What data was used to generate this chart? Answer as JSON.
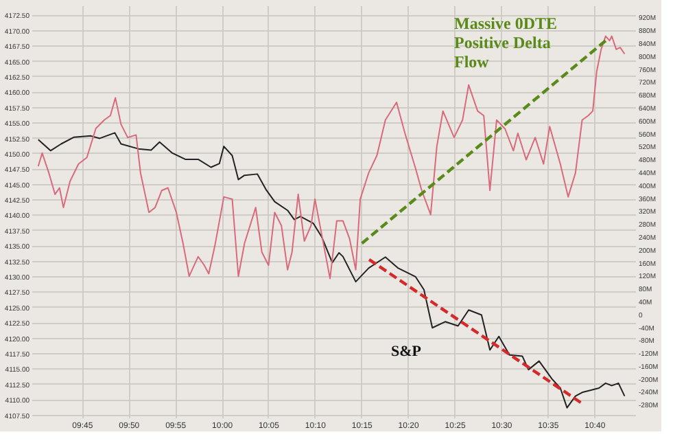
{
  "chart_data": {
    "type": "line",
    "x": [
      9.672,
      9.694,
      9.713,
      9.736,
      9.766,
      9.782,
      9.809,
      9.82,
      9.851,
      9.874,
      9.889,
      9.912,
      9.935,
      9.958,
      9.981,
      9.996,
      10.004,
      10.019,
      10.03,
      10.041,
      10.064,
      10.08,
      10.095,
      10.118,
      10.13,
      10.141,
      10.164,
      10.179,
      10.198,
      10.21,
      10.217,
      10.24,
      10.263,
      10.293,
      10.316,
      10.347,
      10.362,
      10.377,
      10.4,
      10.423,
      10.442,
      10.465,
      10.48,
      10.496,
      10.515,
      10.538,
      10.549,
      10.568,
      10.591,
      10.606,
      10.618,
      10.633,
      10.645,
      10.675,
      10.687,
      10.698,
      10.71,
      10.721
    ],
    "series": [
      {
        "color": "#222222",
        "values": [
          4152.2,
          4150.4,
          4151.5,
          4152.6,
          4152.8,
          4152.4,
          4153.3,
          4151.5,
          4150.7,
          4150.5,
          4151.8,
          4150.0,
          4149.0,
          4149.0,
          4147.7,
          4148.3,
          4151.1,
          4149.6,
          4145.7,
          4146.4,
          4146.6,
          4144.0,
          4142.1,
          4140.7,
          4139.2,
          4139.7,
          4138.6,
          4136.4,
          4132.2,
          4133.8,
          4133.2,
          4129.1,
          4131.3,
          4133.1,
          4131.3,
          4129.9,
          4127.8,
          4121.6,
          4122.6,
          4121.9,
          4124.5,
          4123.7,
          4118.0,
          4120.2,
          4117.2,
          4117.0,
          4114.8,
          4116.2,
          4113.3,
          4111.8,
          4108.6,
          4110.5,
          4111.1,
          4111.8,
          4112.6,
          4112.2,
          4112.6,
          4110.5
        ]
      },
      {
        "color": "#d96a7b",
        "axis": "y2",
        "x": [
          9.672,
          9.679,
          9.691,
          9.702,
          9.71,
          9.717,
          9.729,
          9.744,
          9.759,
          9.775,
          9.79,
          9.801,
          9.81,
          9.82,
          9.832,
          9.847,
          9.855,
          9.87,
          9.881,
          9.893,
          9.904,
          9.919,
          9.931,
          9.942,
          9.958,
          9.969,
          9.977,
          9.988,
          10.004,
          10.019,
          10.03,
          10.041,
          10.061,
          10.072,
          10.084,
          10.095,
          10.107,
          10.118,
          10.126,
          10.137,
          10.148,
          10.16,
          10.167,
          10.179,
          10.194,
          10.206,
          10.217,
          10.229,
          10.24,
          10.248,
          10.263,
          10.278,
          10.293,
          10.313,
          10.328,
          10.347,
          10.358,
          10.374,
          10.385,
          10.396,
          10.416,
          10.431,
          10.442,
          10.458,
          10.469,
          10.48,
          10.492,
          10.507,
          10.522,
          10.53,
          10.545,
          10.561,
          10.576,
          10.587,
          10.606,
          10.62,
          10.633,
          10.645,
          10.656,
          10.664,
          10.671,
          10.679,
          10.687,
          10.694,
          10.698,
          10.706,
          10.713,
          10.721
        ],
        "values": [
          457,
          498,
          436,
          370,
          390,
          329,
          411,
          464,
          484,
          574,
          600,
          614,
          669,
          587,
          546,
          554,
          436,
          314,
          329,
          382,
          390,
          314,
          218,
          116,
          177,
          150,
          124,
          211,
          362,
          355,
          116,
          218,
          329,
          191,
          150,
          314,
          273,
          136,
          191,
          370,
          225,
          273,
          355,
          246,
          109,
          288,
          288,
          232,
          136,
          355,
          436,
          491,
          600,
          655,
          559,
          450,
          382,
          307,
          518,
          628,
          546,
          600,
          709,
          628,
          614,
          382,
          600,
          573,
          505,
          559,
          477,
          546,
          464,
          580,
          464,
          362,
          436,
          600,
          614,
          628,
          750,
          819,
          860,
          846,
          860,
          819,
          825,
          805
        ]
      },
      {
        "type": "line",
        "color": "#d42a2a",
        "line_style": "dashed",
        "x": [
          10.264,
          10.645
        ],
        "values": [
          4132.7,
          4109.3
        ]
      },
      {
        "type": "line",
        "color": "#5a8a1a",
        "line_style": "dashed",
        "axis": "y2",
        "x": [
          10.251,
          10.687
        ],
        "values": [
          218,
          846
        ]
      }
    ],
    "xlim": [
      9.66,
      10.74
    ],
    "xticks": [
      {
        "value": 9.75,
        "label": "09:45"
      },
      {
        "value": 9.8333,
        "label": "09:50"
      },
      {
        "value": 9.9167,
        "label": "09:55"
      },
      {
        "value": 10,
        "label": "10:00"
      },
      {
        "value": 10.0833,
        "label": "10:05"
      },
      {
        "value": 10.1667,
        "label": "10:10"
      },
      {
        "value": 10.25,
        "label": "10:15"
      },
      {
        "value": 10.3333,
        "label": "10:20"
      },
      {
        "value": 10.4167,
        "label": "10:25"
      },
      {
        "value": 10.5,
        "label": "10:30"
      },
      {
        "value": 10.5833,
        "label": "10:35"
      },
      {
        "value": 10.6667,
        "label": "10:40"
      }
    ],
    "ylim": [
      4107.0,
      4174.0
    ],
    "yticks": [
      {
        "value": 4107.5,
        "label": "4107.50"
      },
      {
        "value": 4110,
        "label": "4110.00"
      },
      {
        "value": 4112.5,
        "label": "4112.50"
      },
      {
        "value": 4115,
        "label": "4115.00"
      },
      {
        "value": 4117.5,
        "label": "4117.50"
      },
      {
        "value": 4120,
        "label": "4120.00"
      },
      {
        "value": 4122.5,
        "label": "4122.50"
      },
      {
        "value": 4125,
        "label": "4125.00"
      },
      {
        "value": 4127.5,
        "label": "4127.50"
      },
      {
        "value": 4130,
        "label": "4130.00"
      },
      {
        "value": 4132.5,
        "label": "4132.50"
      },
      {
        "value": 4135,
        "label": "4135.00"
      },
      {
        "value": 4137.5,
        "label": "4137.50"
      },
      {
        "value": 4140,
        "label": "4140.00"
      },
      {
        "value": 4142.5,
        "label": "4142.50"
      },
      {
        "value": 4145,
        "label": "4145.00"
      },
      {
        "value": 4147.5,
        "label": "4147.50"
      },
      {
        "value": 4150,
        "label": "4150.00"
      },
      {
        "value": 4152.5,
        "label": "4152.50"
      },
      {
        "value": 4155,
        "label": "4155.00"
      },
      {
        "value": 4157.5,
        "label": "4157.50"
      },
      {
        "value": 4160,
        "label": "4160.00"
      },
      {
        "value": 4162.5,
        "label": "4162.50"
      },
      {
        "value": 4165,
        "label": "4165.00"
      },
      {
        "value": 4167.5,
        "label": "4167.50"
      },
      {
        "value": 4170,
        "label": "4170.00"
      },
      {
        "value": 4172.5,
        "label": "4172.50"
      }
    ],
    "y2lim": [
      -322,
      955
    ],
    "y2ticks": [
      {
        "value": -280,
        "label": "-280M"
      },
      {
        "value": -240,
        "label": "-240M"
      },
      {
        "value": -200,
        "label": "-200M"
      },
      {
        "value": -160,
        "label": "-160M"
      },
      {
        "value": -120,
        "label": "-120M"
      },
      {
        "value": -80,
        "label": "-80M"
      },
      {
        "value": -40,
        "label": "-40M"
      },
      0,
      {
        "value": 40,
        "label": "40M"
      },
      {
        "value": 80,
        "label": "80M"
      },
      {
        "value": 120,
        "label": "120M"
      },
      {
        "value": 160,
        "label": "160M"
      },
      {
        "value": 200,
        "label": "200M"
      },
      {
        "value": 240,
        "label": "240M"
      },
      {
        "value": 280,
        "label": "280M"
      },
      {
        "value": 320,
        "label": "320M"
      },
      {
        "value": 360,
        "label": "360M"
      },
      {
        "value": 400,
        "label": "400M"
      },
      {
        "value": 440,
        "label": "440M"
      },
      {
        "value": 480,
        "label": "480M"
      },
      {
        "value": 520,
        "label": "520M"
      },
      {
        "value": 560,
        "label": "560M"
      },
      {
        "value": 600,
        "label": "600M"
      },
      {
        "value": 640,
        "label": "640M"
      },
      {
        "value": 680,
        "label": "680M"
      },
      {
        "value": 720,
        "label": "720M"
      },
      {
        "value": 760,
        "label": "760M"
      },
      {
        "value": 800,
        "label": "800M"
      },
      {
        "value": 840,
        "label": "840M"
      },
      {
        "value": 880,
        "label": "880M"
      },
      {
        "value": 920,
        "label": "920M"
      }
    ],
    "annotations": [
      "Massive 0DTE\nPositive Delta\nFlow",
      "S&P"
    ],
    "grid": true,
    "marker": "none",
    "line_style": "solid"
  }
}
